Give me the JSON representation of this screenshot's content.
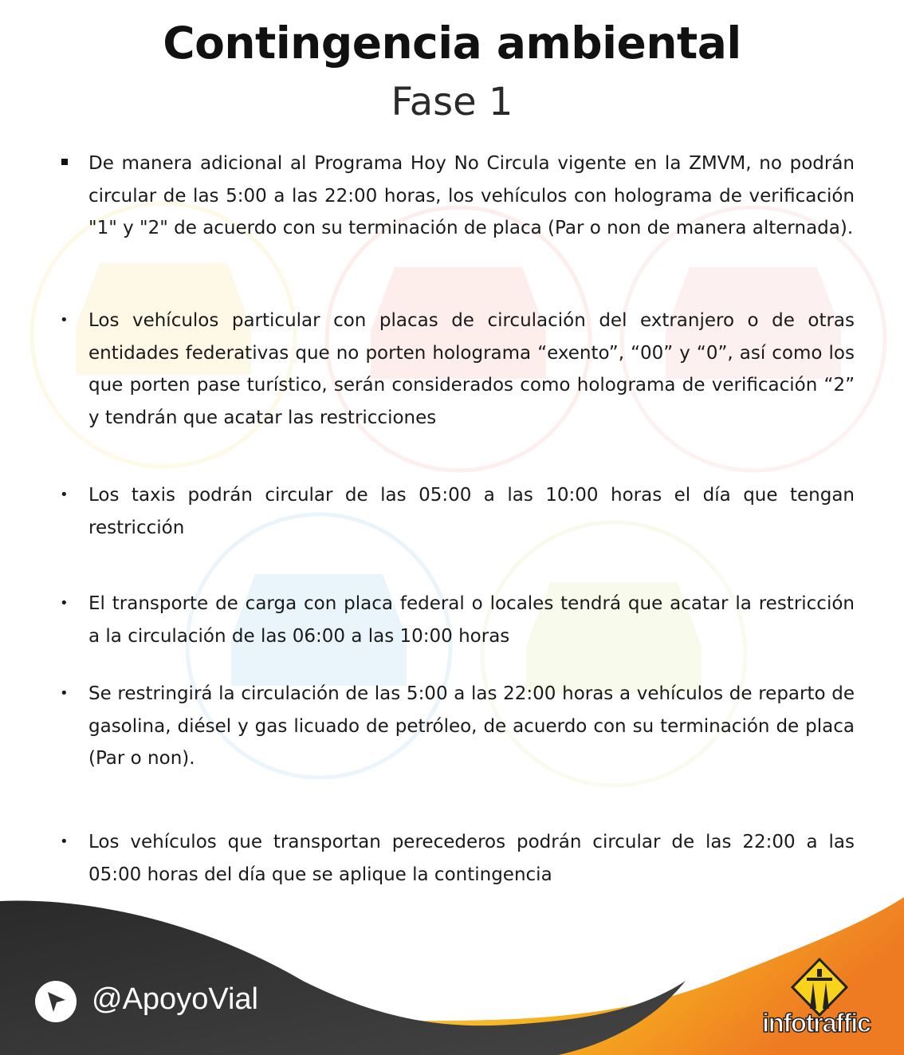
{
  "header": {
    "title": "Contingencia ambiental",
    "subtitle": "Fase 1"
  },
  "items": [
    {
      "bullet": "square",
      "text": "De manera adicional al Programa Hoy No Circula vigente en la ZMVM, no podrán circular de las 5:00 a las 22:00 horas, los vehículos con holograma de verificación \"1\" y \"2\" de acuerdo con su terminación de placa (Par o non de manera alternada)."
    },
    {
      "bullet": "dot",
      "text": "Los vehículos particular con placas de circulación del extranjero o de otras entidades federativas que no porten holograma “exento”, “00” y “0”, así como los que porten pase turístico, serán considerados como holograma de verificación “2” y tendrán que acatar las restricciones"
    },
    {
      "bullet": "dot",
      "text": "Los taxis podrán circular de las 05:00 a las 10:00 horas el día que tengan restricción"
    },
    {
      "bullet": "dot",
      "text": "El transporte de carga con placa federal o locales  tendrá que acatar la restricción a la circulación de las 06:00 a las 10:00 horas"
    },
    {
      "bullet": "dot",
      "text": "Se restringirá la circulación de las 5:00 a las 22:00 horas a vehículos de reparto de gasolina, diésel y gas licuado de petróleo, de acuerdo con su terminación de placa (Par o non)."
    },
    {
      "bullet": "dot",
      "text": "Los vehículos que transportan perecederos podrán circular de las 22:00 a las 05:00 horas del día que se aplique la contingencia"
    }
  ],
  "footer": {
    "handle": "@ApoyoVial",
    "logo_part1": "info",
    "logo_part2": "traffic",
    "colors": {
      "dark": "#333333",
      "accent": "#F7B21F",
      "orange": "#EE7A22"
    }
  },
  "watermark": {
    "icon": "car-in-circle-icon",
    "colors": [
      "#F9D23C",
      "#F07A6A",
      "#F58C8C",
      "#5BB0E6",
      "#C8DE6A"
    ]
  }
}
